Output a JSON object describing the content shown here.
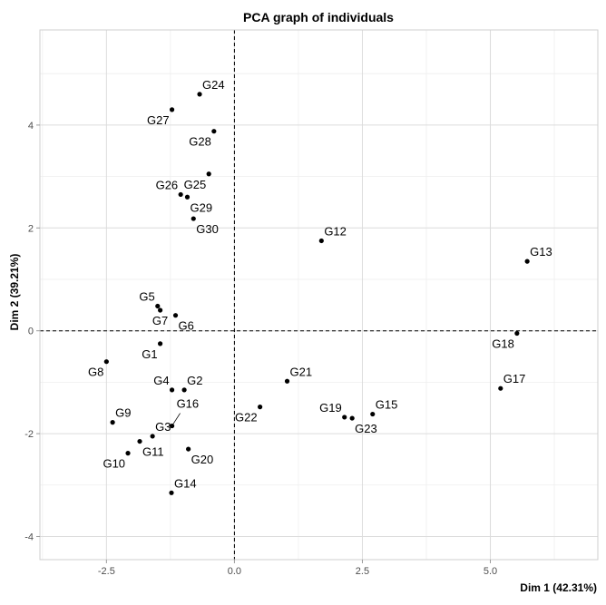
{
  "chart_data": {
    "type": "scatter",
    "title": "PCA graph of individuals",
    "xlabel": "Dim 1 (42.31%)",
    "ylabel": "Dim 2 (39.21%)",
    "xlim": [
      -3.8,
      7.1
    ],
    "ylim": [
      -4.45,
      5.85
    ],
    "x_ticks": [
      -2.5,
      0,
      2.5,
      5
    ],
    "x_tick_labels": [
      "-2.5",
      "0.0",
      "2.5",
      "5.0"
    ],
    "y_ticks": [
      -4,
      -2,
      0,
      2,
      4
    ],
    "y_tick_labels": [
      "-4",
      "-2",
      "0",
      "2",
      "4"
    ],
    "grid": true,
    "reference_lines": {
      "x": 0,
      "y": 0,
      "style": "dashed"
    },
    "point_color": "#000000",
    "points": [
      {
        "label": "G1",
        "x": -1.45,
        "y": -0.25,
        "label_pos": "bottom-left"
      },
      {
        "label": "G2",
        "x": -0.98,
        "y": -1.15,
        "label_pos": "top-right"
      },
      {
        "label": "G3",
        "x": -1.6,
        "y": -2.05,
        "label_pos": "top-right"
      },
      {
        "label": "G4",
        "x": -1.22,
        "y": -1.15,
        "label_pos": "top-left"
      },
      {
        "label": "G5",
        "x": -1.5,
        "y": 0.48,
        "label_pos": "top-left"
      },
      {
        "label": "G6",
        "x": -1.15,
        "y": 0.3,
        "label_pos": "bottom-right"
      },
      {
        "label": "G7",
        "x": -1.45,
        "y": 0.4,
        "label_pos": "bottom"
      },
      {
        "label": "G8",
        "x": -2.5,
        "y": -0.6,
        "label_pos": "bottom-left"
      },
      {
        "label": "G9",
        "x": -2.38,
        "y": -1.78,
        "label_pos": "top-right"
      },
      {
        "label": "G10",
        "x": -2.08,
        "y": -2.38,
        "label_pos": "bottom-left"
      },
      {
        "label": "G11",
        "x": -1.85,
        "y": -2.15,
        "label_pos": "bottom-right"
      },
      {
        "label": "G12",
        "x": 1.7,
        "y": 1.75,
        "label_pos": "top-right"
      },
      {
        "label": "G13",
        "x": 5.72,
        "y": 1.35,
        "label_pos": "top-right"
      },
      {
        "label": "G14",
        "x": -1.23,
        "y": -3.15,
        "label_pos": "top-right"
      },
      {
        "label": "G15",
        "x": 2.7,
        "y": -1.62,
        "label_pos": "top-right"
      },
      {
        "label": "G16",
        "x": -1.22,
        "y": -1.85,
        "label_pos": "top-right-leader"
      },
      {
        "label": "G17",
        "x": 5.2,
        "y": -1.12,
        "label_pos": "top-right"
      },
      {
        "label": "G18",
        "x": 5.52,
        "y": -0.05,
        "label_pos": "bottom-left"
      },
      {
        "label": "G19",
        "x": 2.15,
        "y": -1.68,
        "label_pos": "top-left"
      },
      {
        "label": "G20",
        "x": -0.9,
        "y": -2.3,
        "label_pos": "bottom-right"
      },
      {
        "label": "G21",
        "x": 1.03,
        "y": -0.98,
        "label_pos": "top-right"
      },
      {
        "label": "G22",
        "x": 0.5,
        "y": -1.48,
        "label_pos": "bottom-left"
      },
      {
        "label": "G23",
        "x": 2.3,
        "y": -1.7,
        "label_pos": "bottom-right"
      },
      {
        "label": "G24",
        "x": -0.68,
        "y": 4.6,
        "label_pos": "top-right"
      },
      {
        "label": "G25",
        "x": -0.5,
        "y": 3.05,
        "label_pos": "bottom-left"
      },
      {
        "label": "G26",
        "x": -1.05,
        "y": 2.65,
        "label_pos": "top-left"
      },
      {
        "label": "G27",
        "x": -1.22,
        "y": 4.3,
        "label_pos": "bottom-left"
      },
      {
        "label": "G28",
        "x": -0.4,
        "y": 3.88,
        "label_pos": "bottom-left"
      },
      {
        "label": "G29",
        "x": -0.92,
        "y": 2.6,
        "label_pos": "bottom-right"
      },
      {
        "label": "G30",
        "x": -0.8,
        "y": 2.18,
        "label_pos": "bottom-right"
      }
    ]
  }
}
